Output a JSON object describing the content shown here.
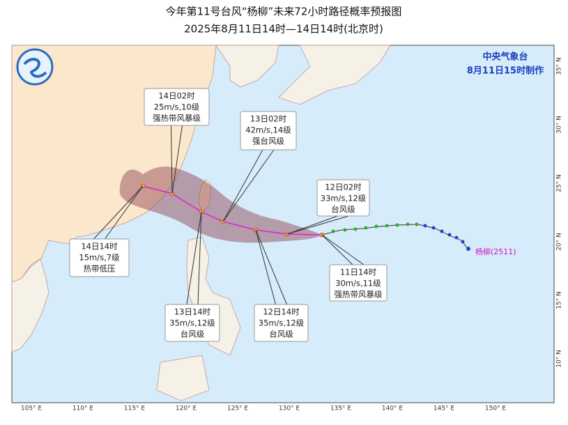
{
  "header": {
    "title": "今年第11号台风“杨柳”未来72小时路径概率预报图",
    "subtitle": "2025年8月11日14时—14日14时(北京时)"
  },
  "agency": {
    "name": "中央气象台",
    "issued": "8月11日15时制作"
  },
  "typhoon_label": "杨柳(2511)",
  "forecasts": [
    {
      "time": "14日02时",
      "wind": "25m/s,10级",
      "level": "强热带风暴级"
    },
    {
      "time": "13日02时",
      "wind": "42m/s,14级",
      "level": "强台风级"
    },
    {
      "time": "12日02时",
      "wind": "33m/s,12级",
      "level": "台风级"
    },
    {
      "time": "14日14时",
      "wind": "15m/s,7级",
      "level": "热带低压"
    },
    {
      "time": "11日14时",
      "wind": "30m/s,11级",
      "level": "强热带风暴级"
    },
    {
      "time": "13日14时",
      "wind": "35m/s,12级",
      "level": "台风级"
    },
    {
      "time": "12日14时",
      "wind": "35m/s,12级",
      "level": "台风级"
    }
  ],
  "lon_labels": [
    "105° E",
    "110° E",
    "115° E",
    "120° E",
    "125° E",
    "130° E",
    "135° E",
    "140° E",
    "145° E",
    "150° E"
  ],
  "lat_labels": [
    "35° N",
    "30° N",
    "25° N",
    "20° N",
    "15° N",
    "10° N"
  ]
}
